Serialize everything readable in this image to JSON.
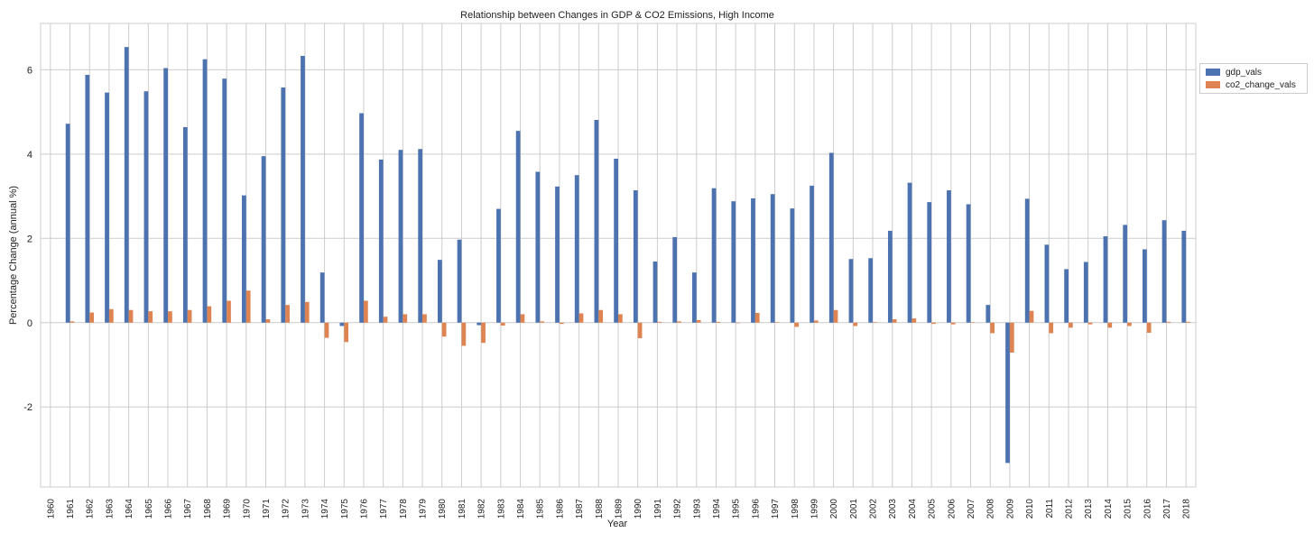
{
  "chart_data": {
    "type": "bar",
    "title": "Relationship between Changes in GDP & CO2 Emissions, High Income",
    "xlabel": "Year",
    "ylabel": "Percentage Change (annual %)",
    "ylim": [
      -3.9,
      7.1
    ],
    "yticks": [
      -2,
      0,
      2,
      4,
      6
    ],
    "grid": true,
    "legend_position": "right, outside plot, near top",
    "categories": [
      "1960",
      "1961",
      "1962",
      "1963",
      "1964",
      "1965",
      "1966",
      "1967",
      "1968",
      "1969",
      "1970",
      "1971",
      "1972",
      "1973",
      "1974",
      "1975",
      "1976",
      "1977",
      "1978",
      "1979",
      "1980",
      "1981",
      "1982",
      "1983",
      "1984",
      "1985",
      "1986",
      "1987",
      "1988",
      "1989",
      "1990",
      "1991",
      "1992",
      "1993",
      "1994",
      "1995",
      "1996",
      "1997",
      "1998",
      "1999",
      "2000",
      "2001",
      "2002",
      "2003",
      "2004",
      "2005",
      "2006",
      "2007",
      "2008",
      "2009",
      "2010",
      "2011",
      "2012",
      "2013",
      "2014",
      "2015",
      "2016",
      "2017",
      "2018"
    ],
    "series": [
      {
        "name": "gdp_vals",
        "color": "#4c72b0",
        "values": [
          null,
          4.72,
          5.88,
          5.46,
          6.54,
          5.49,
          6.04,
          4.64,
          6.25,
          5.79,
          3.02,
          3.95,
          5.58,
          6.33,
          1.19,
          -0.08,
          4.97,
          3.87,
          4.1,
          4.12,
          1.49,
          1.97,
          -0.06,
          2.7,
          4.55,
          3.58,
          3.23,
          3.5,
          4.81,
          3.89,
          3.14,
          1.45,
          2.03,
          1.19,
          3.19,
          2.88,
          2.95,
          3.05,
          2.71,
          3.25,
          4.03,
          1.51,
          1.53,
          2.18,
          3.32,
          2.86,
          3.14,
          2.81,
          0.42,
          -3.33,
          2.94,
          1.85,
          1.27,
          1.44,
          2.05,
          2.32,
          1.74,
          2.43,
          2.18
        ]
      },
      {
        "name": "co2_change_vals",
        "color": "#dd8452",
        "values": [
          null,
          0.03,
          0.24,
          0.32,
          0.3,
          0.27,
          0.27,
          0.3,
          0.39,
          0.52,
          0.76,
          0.08,
          0.42,
          0.49,
          -0.36,
          -0.46,
          0.52,
          0.14,
          0.2,
          0.2,
          -0.33,
          -0.55,
          -0.48,
          -0.07,
          0.2,
          0.03,
          -0.03,
          0.22,
          0.3,
          0.2,
          -0.37,
          0.02,
          0.03,
          0.06,
          0.02,
          -0.01,
          0.23,
          0.01,
          -0.1,
          0.05,
          0.3,
          -0.08,
          0.01,
          0.08,
          0.1,
          -0.03,
          -0.04,
          0.01,
          -0.25,
          -0.71,
          0.28,
          -0.25,
          -0.12,
          -0.04,
          -0.12,
          -0.08,
          -0.24,
          0.02,
          0.02
        ]
      }
    ]
  }
}
